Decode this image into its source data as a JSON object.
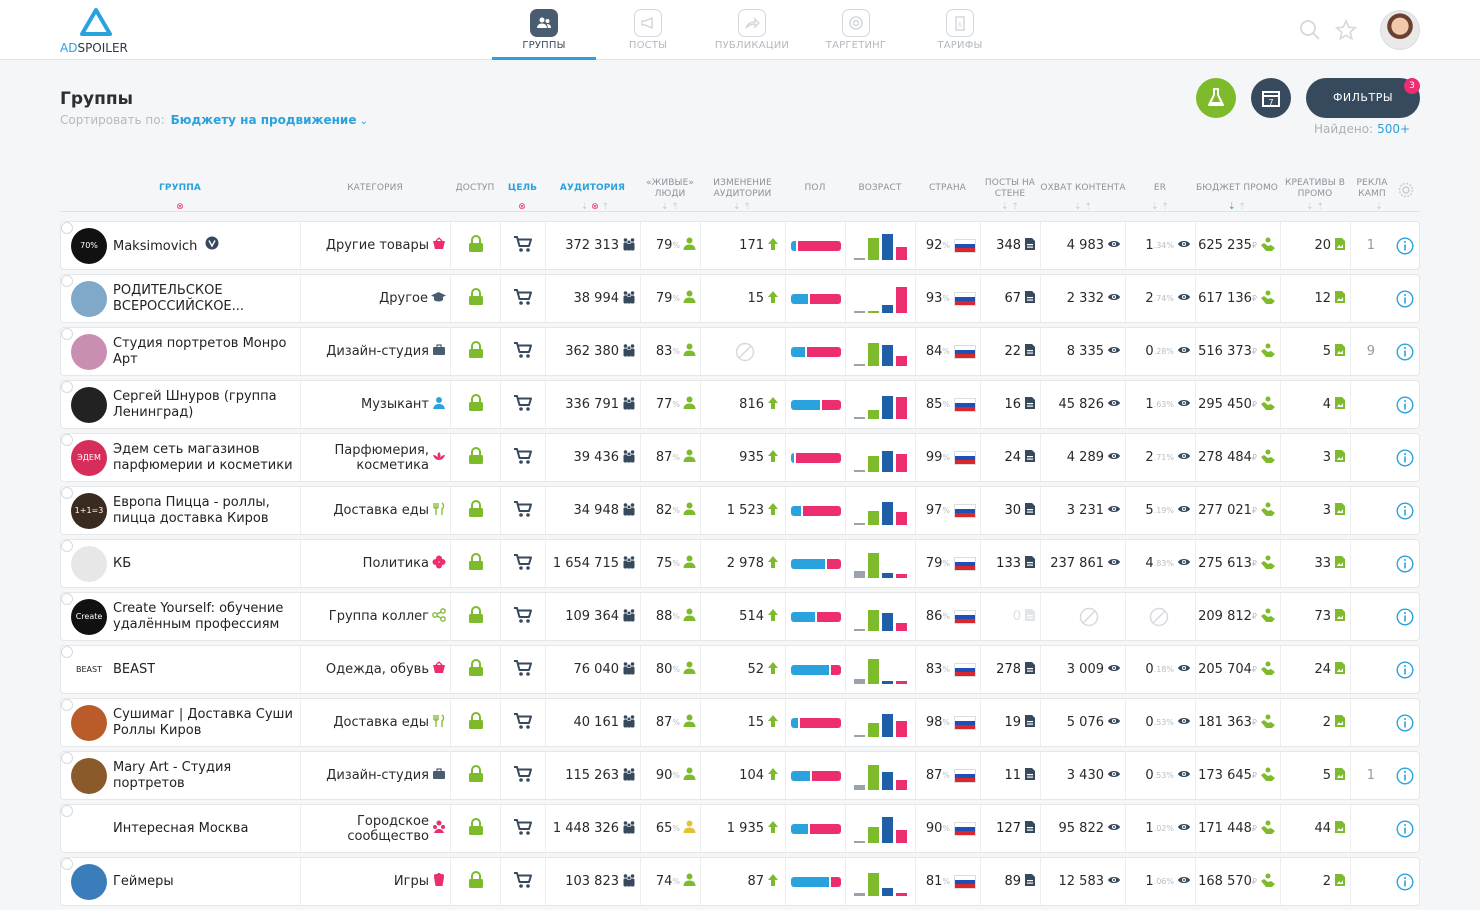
{
  "app": {
    "logo_ad": "AD",
    "logo_spoiler": "SPOILER"
  },
  "nav": [
    {
      "label": "ГРУППЫ",
      "icon": "users-icon",
      "active": true
    },
    {
      "label": "ПОСТЫ",
      "icon": "megaphone-icon",
      "active": false
    },
    {
      "label": "ПУБЛИКАЦИИ",
      "icon": "share-icon",
      "active": false
    },
    {
      "label": "ТАРГЕТИНГ",
      "icon": "target-icon",
      "active": false
    },
    {
      "label": "ТАРИФЫ",
      "icon": "price-tag-icon",
      "active": false
    }
  ],
  "header": {
    "title": "Группы",
    "sort_label": "Сортировать по:",
    "sort_value": "Бюджету на продвижение",
    "filters_label": "ФИЛЬТРЫ",
    "filters_count": "3",
    "found_label": "Найдено:",
    "found_value": "500+"
  },
  "columns": {
    "group": "ГРУППА",
    "category": "КАТЕГОРИЯ",
    "access": "ДОСТУП",
    "goal": "ЦЕЛЬ",
    "audience": "АУДИТОРИЯ",
    "live1": "«ЖИВЫЕ»",
    "live2": "ЛЮДИ",
    "chg1": "ИЗМЕНЕНИЕ",
    "chg2": "АУДИТОРИИ",
    "sex": "ПОЛ",
    "age": "ВОЗРАСТ",
    "country": "СТРАНА",
    "posts1": "ПОСТЫ НА",
    "posts2": "СТЕНЕ",
    "reach": "ОХВАТ КОНТЕНТА",
    "er": "ER",
    "budget": "БЮДЖЕТ ПРОМО",
    "cre1": "КРЕАТИВЫ В",
    "cre2": "ПРОМО",
    "ads1": "РЕКЛА",
    "ads2": "КАМП"
  },
  "colors": {
    "accent": "#2aa2dd",
    "male": "#2aa2dd",
    "female": "#ec2d6f",
    "green": "#7dbb2d",
    "dark": "#374a5d"
  },
  "rows": [
    {
      "name": "Maksimovich",
      "verified": true,
      "category": "Другие товары",
      "cat_icon": "basket-icon",
      "audience": "372 313",
      "live": "79",
      "change": "171",
      "change_dir": "up",
      "male": 0.1,
      "age": [
        0.05,
        0.85,
        1,
        0.5
      ],
      "country": "92",
      "posts": "348",
      "reach": "4 983",
      "er_int": "1",
      "er_dec": ".34",
      "budget": "625 235",
      "creatives": "20",
      "ads": "1",
      "avatar_bg": "#111",
      "avatar_txt": "70%"
    },
    {
      "name": "РОДИТЕЛЬСКОЕ ВСЕРОССИЙСКОЕ...",
      "verified": false,
      "category": "Другое",
      "cat_icon": "graduation-icon",
      "audience": "38 994",
      "live": "79",
      "change": "15",
      "change_dir": "up",
      "male": 0.35,
      "age": [
        0.02,
        0.05,
        0.3,
        1
      ],
      "country": "93",
      "posts": "67",
      "reach": "2 332",
      "er_int": "2",
      "er_dec": ".74",
      "budget": "617 136",
      "creatives": "12",
      "ads": "",
      "avatar_bg": "#7fa8c9",
      "avatar_txt": ""
    },
    {
      "name": "Студия портретов Монро Арт",
      "verified": false,
      "category": "Дизайн-студия",
      "cat_icon": "briefcase-icon",
      "audience": "362 380",
      "live": "83",
      "change": "",
      "change_dir": "none",
      "male": 0.3,
      "age": [
        0.08,
        0.9,
        0.8,
        0.4
      ],
      "country": "84",
      "posts": "22",
      "reach": "8 335",
      "er_int": "0",
      "er_dec": ".28",
      "budget": "516 373",
      "creatives": "5",
      "ads": "9",
      "avatar_bg": "#c98fb0",
      "avatar_txt": ""
    },
    {
      "name": "Сергей Шнуров (группа Ленинград)",
      "verified": false,
      "category": "Музыкант",
      "cat_icon": "singer-icon",
      "audience": "336 791",
      "live": "77",
      "change": "816",
      "change_dir": "up",
      "male": 0.6,
      "age": [
        0.03,
        0.35,
        0.9,
        0.85
      ],
      "country": "85",
      "posts": "16",
      "reach": "45 826",
      "er_int": "1",
      "er_dec": ".63",
      "budget": "295 450",
      "creatives": "4",
      "ads": "",
      "avatar_bg": "#222",
      "avatar_txt": ""
    },
    {
      "name": "Эдем сеть магазинов парфюмерии и косметики",
      "verified": false,
      "category": "Парфюмерия, косметика",
      "cat_icon": "lotus-icon",
      "audience": "39 436",
      "live": "87",
      "change": "935",
      "change_dir": "up",
      "male": 0.06,
      "age": [
        0.04,
        0.6,
        0.8,
        0.7
      ],
      "country": "99",
      "posts": "24",
      "reach": "4 289",
      "er_int": "2",
      "er_dec": ".71",
      "budget": "278 484",
      "creatives": "3",
      "ads": "",
      "avatar_bg": "#d62d5a",
      "avatar_txt": "ЭДЕМ"
    },
    {
      "name": "Европа Пицца - роллы, пицца доставка Киров",
      "verified": false,
      "category": "Доставка еды",
      "cat_icon": "fork-knife-icon",
      "audience": "34 948",
      "live": "82",
      "change": "1 523",
      "change_dir": "up",
      "male": 0.2,
      "age": [
        0.04,
        0.55,
        0.9,
        0.5
      ],
      "country": "97",
      "posts": "30",
      "reach": "3 231",
      "er_int": "5",
      "er_dec": ".19",
      "budget": "277 021",
      "creatives": "3",
      "ads": "",
      "avatar_bg": "#3a2a20",
      "avatar_txt": "1+1=3"
    },
    {
      "name": "КБ",
      "verified": false,
      "category": "Политика",
      "cat_icon": "flower-icon",
      "audience": "1 654 715",
      "live": "75",
      "change": "2 978",
      "change_dir": "up",
      "male": 0.7,
      "age": [
        0.25,
        0.95,
        0.2,
        0.15
      ],
      "country": "79",
      "posts": "133",
      "reach": "237 861",
      "er_int": "4",
      "er_dec": ".83",
      "budget": "275 613",
      "creatives": "33",
      "ads": "",
      "avatar_bg": "#e7e7e7",
      "avatar_txt": ""
    },
    {
      "name": "Create Yourself: обучение удалённым профессиям",
      "verified": false,
      "category": "Группа коллег",
      "cat_icon": "network-icon",
      "audience": "109 364",
      "live": "88",
      "change": "514",
      "change_dir": "up",
      "male": 0.5,
      "age": [
        0.03,
        0.8,
        0.7,
        0.3
      ],
      "country": "86",
      "posts": "0",
      "reach": "",
      "er_int": "",
      "er_dec": "",
      "budget": "209 812",
      "creatives": "73",
      "ads": "",
      "avatar_bg": "#111",
      "avatar_txt": "Create"
    },
    {
      "name": "BEAST",
      "verified": false,
      "category": "Одежда, обувь",
      "cat_icon": "basket-icon",
      "audience": "76 040",
      "live": "80",
      "change": "52",
      "change_dir": "up",
      "male": 0.8,
      "age": [
        0.2,
        0.95,
        0.1,
        0.1
      ],
      "country": "83",
      "posts": "278",
      "reach": "3 009",
      "er_int": "0",
      "er_dec": ".18",
      "budget": "205 704",
      "creatives": "24",
      "ads": "",
      "avatar_bg": "#fff",
      "avatar_txt": "BEAST"
    },
    {
      "name": "Сушимаг | Доставка Суши Роллы Киров",
      "verified": false,
      "category": "Доставка еды",
      "cat_icon": "fork-knife-icon",
      "audience": "40 161",
      "live": "87",
      "change": "15",
      "change_dir": "up",
      "male": 0.15,
      "age": [
        0.04,
        0.55,
        0.9,
        0.6
      ],
      "country": "98",
      "posts": "19",
      "reach": "5 076",
      "er_int": "0",
      "er_dec": ".53",
      "budget": "181 363",
      "creatives": "2",
      "ads": "",
      "avatar_bg": "#b95c2a",
      "avatar_txt": ""
    },
    {
      "name": "Mary Art - Студия портретов",
      "verified": false,
      "category": "Дизайн-студия",
      "cat_icon": "briefcase-icon",
      "audience": "115 263",
      "live": "90",
      "change": "104",
      "change_dir": "up",
      "male": 0.4,
      "age": [
        0.2,
        0.95,
        0.7,
        0.4
      ],
      "country": "87",
      "posts": "11",
      "reach": "3 430",
      "er_int": "0",
      "er_dec": ".53",
      "budget": "173 645",
      "creatives": "5",
      "ads": "1",
      "avatar_bg": "#8a5a2a",
      "avatar_txt": ""
    },
    {
      "name": "Интересная Москва",
      "verified": false,
      "category": "Городское сообщество",
      "cat_icon": "community-icon",
      "audience": "1 448 326",
      "live": "65",
      "change": "1 935",
      "change_dir": "up",
      "male": 0.35,
      "age": [
        0.05,
        0.6,
        1,
        0.5
      ],
      "country": "90",
      "posts": "127",
      "reach": "95 822",
      "er_int": "1",
      "er_dec": ".02",
      "budget": "171 448",
      "creatives": "44",
      "ads": "",
      "avatar_bg": "#fff",
      "avatar_txt": ""
    },
    {
      "name": "Геймеры",
      "verified": false,
      "category": "Игры",
      "cat_icon": "popcorn-icon",
      "audience": "103 823",
      "live": "74",
      "change": "87",
      "change_dir": "up",
      "male": 0.8,
      "age": [
        0.1,
        0.9,
        0.3,
        0.1
      ],
      "country": "81",
      "posts": "89",
      "reach": "12 583",
      "er_int": "1",
      "er_dec": ".06",
      "budget": "168 570",
      "creatives": "2",
      "ads": "",
      "avatar_bg": "#3b7dbb",
      "avatar_txt": ""
    }
  ]
}
